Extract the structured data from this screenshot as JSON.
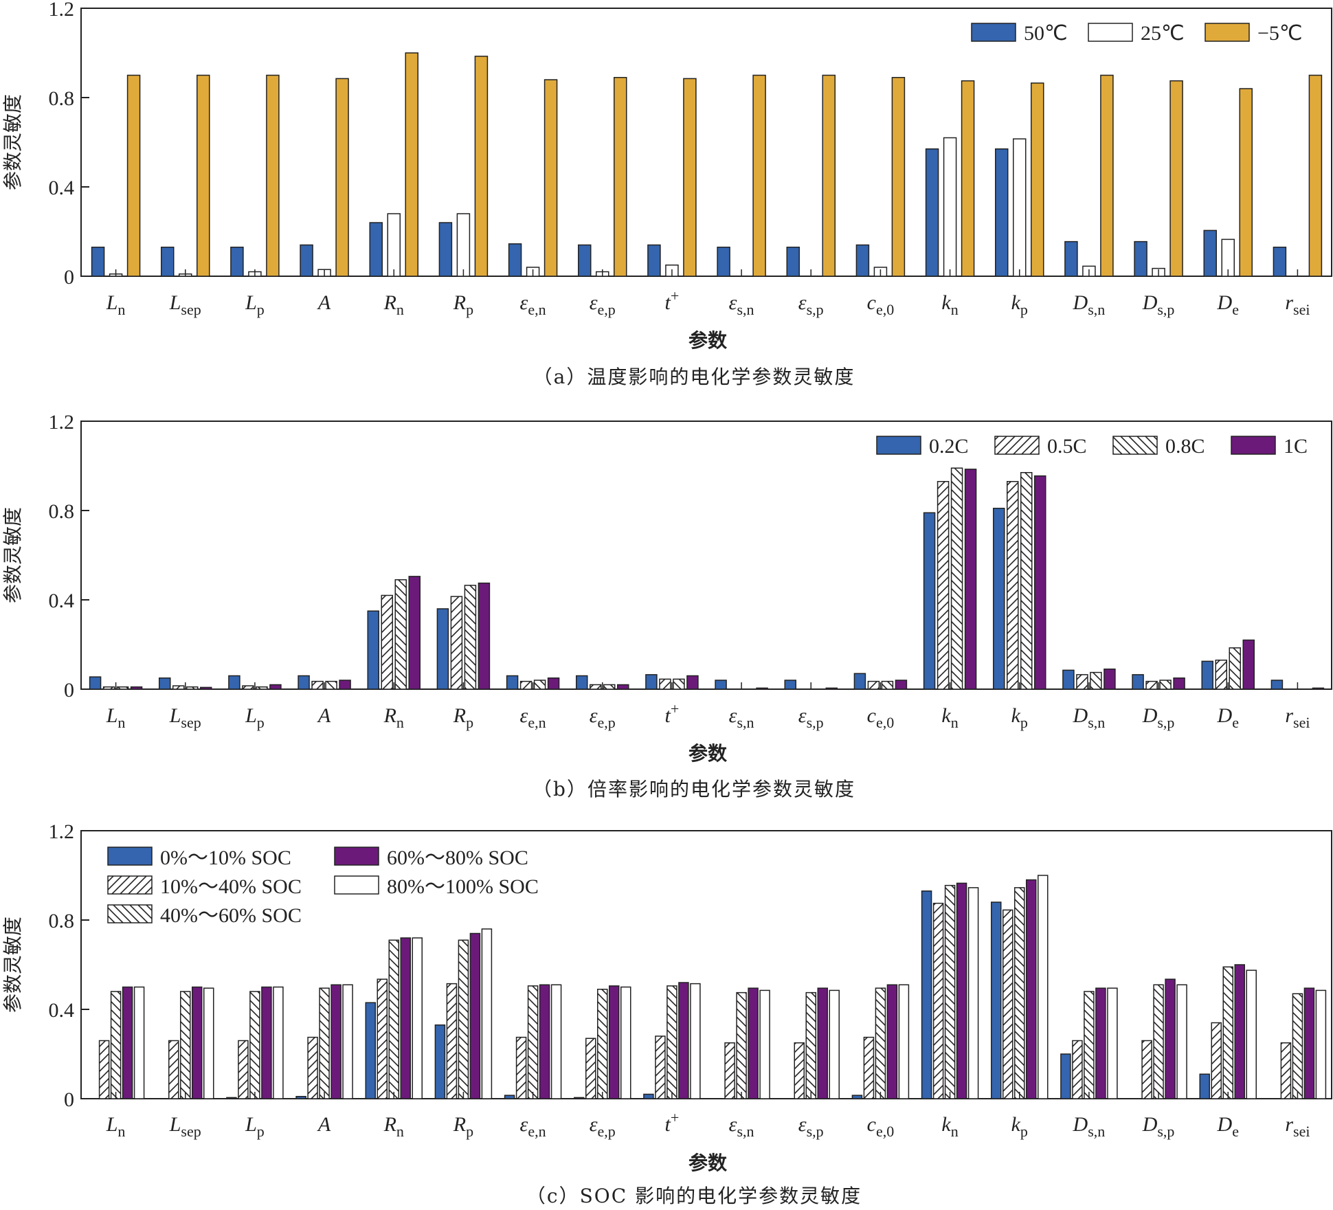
{
  "chart_data": [
    {
      "id": "a",
      "type": "bar",
      "caption": "（a）温度影响的电化学参数灵敏度",
      "xlabel": "参数",
      "ylabel": "参数灵敏度",
      "ylim": [
        0,
        1.2
      ],
      "yticks": [
        "0",
        "0.4",
        "0.8",
        "1.2"
      ],
      "ytick_values": [
        0,
        0.4,
        0.8,
        1.2
      ],
      "legend_position": "top-right",
      "categories": [
        {
          "main": "L",
          "sub": "n"
        },
        {
          "main": "L",
          "sub": "sep"
        },
        {
          "main": "L",
          "sub": "p"
        },
        {
          "main": "A",
          "sub": ""
        },
        {
          "main": "R",
          "sub": "n"
        },
        {
          "main": "R",
          "sub": "p"
        },
        {
          "main": "ε",
          "sub": "e,n"
        },
        {
          "main": "ε",
          "sub": "e,p"
        },
        {
          "main": "t",
          "sup": "+"
        },
        {
          "main": "ε",
          "sub": "s,n"
        },
        {
          "main": "ε",
          "sub": "s,p"
        },
        {
          "main": "c",
          "sub": "e,0"
        },
        {
          "main": "k",
          "sub": "n"
        },
        {
          "main": "k",
          "sub": "p"
        },
        {
          "main": "D",
          "sub": "s,n"
        },
        {
          "main": "D",
          "sub": "s,p"
        },
        {
          "main": "D",
          "sub": "e"
        },
        {
          "main": "r",
          "sub": "sei"
        }
      ],
      "series": [
        {
          "name": "50℃",
          "fill": "#3465ae",
          "pattern": "solid",
          "values": [
            0.13,
            0.13,
            0.13,
            0.14,
            0.24,
            0.24,
            0.145,
            0.14,
            0.14,
            0.13,
            0.13,
            0.14,
            0.57,
            0.57,
            0.155,
            0.155,
            0.205,
            0.13
          ]
        },
        {
          "name": "25℃",
          "fill": "#ffffff",
          "pattern": "solid",
          "values": [
            0.01,
            0.01,
            0.02,
            0.03,
            0.28,
            0.28,
            0.04,
            0.02,
            0.05,
            0.0,
            0.0,
            0.04,
            0.62,
            0.615,
            0.045,
            0.035,
            0.165,
            0.0
          ]
        },
        {
          "name": "−5℃",
          "fill": "#e0aa3a",
          "pattern": "solid",
          "values": [
            0.9,
            0.9,
            0.9,
            0.885,
            1.0,
            0.985,
            0.88,
            0.89,
            0.885,
            0.9,
            0.9,
            0.89,
            0.875,
            0.865,
            0.9,
            0.875,
            0.84,
            0.9
          ]
        }
      ]
    },
    {
      "id": "b",
      "type": "bar",
      "caption": "（b）倍率影响的电化学参数灵敏度",
      "xlabel": "参数",
      "ylabel": "参数灵敏度",
      "ylim": [
        0,
        1.2
      ],
      "yticks": [
        "0",
        "0.4",
        "0.8",
        "1.2"
      ],
      "ytick_values": [
        0,
        0.4,
        0.8,
        1.2
      ],
      "legend_position": "top-right",
      "categories": "same-as-a",
      "series": [
        {
          "name": "0.2C",
          "fill": "#3465ae",
          "pattern": "solid",
          "values": [
            0.055,
            0.05,
            0.06,
            0.06,
            0.35,
            0.36,
            0.06,
            0.06,
            0.065,
            0.04,
            0.04,
            0.07,
            0.79,
            0.81,
            0.085,
            0.065,
            0.125,
            0.04
          ]
        },
        {
          "name": "0.5C",
          "fill": "#ffffff",
          "pattern": "hatch-forward",
          "values": [
            0.01,
            0.015,
            0.015,
            0.035,
            0.42,
            0.415,
            0.035,
            0.02,
            0.045,
            0.0,
            0.0,
            0.035,
            0.93,
            0.93,
            0.065,
            0.035,
            0.13,
            0.0
          ]
        },
        {
          "name": "0.8C",
          "fill": "#ffffff",
          "pattern": "hatch-back",
          "values": [
            0.01,
            0.01,
            0.01,
            0.035,
            0.49,
            0.465,
            0.04,
            0.02,
            0.045,
            0.0,
            0.0,
            0.035,
            0.99,
            0.97,
            0.075,
            0.04,
            0.185,
            0.0
          ]
        },
        {
          "name": "1C",
          "fill": "#6b1a7a",
          "pattern": "solid",
          "values": [
            0.01,
            0.008,
            0.02,
            0.04,
            0.505,
            0.475,
            0.05,
            0.02,
            0.06,
            0.005,
            0.005,
            0.04,
            0.985,
            0.955,
            0.09,
            0.05,
            0.22,
            0.005
          ]
        }
      ]
    },
    {
      "id": "c",
      "type": "bar",
      "caption": "（c）SOC 影响的电化学参数灵敏度",
      "xlabel": "参数",
      "ylabel": "参数灵敏度",
      "ylim": [
        0,
        1.2
      ],
      "yticks": [
        "0",
        "0.4",
        "0.8",
        "1.2"
      ],
      "ytick_values": [
        0,
        0.4,
        0.8,
        1.2
      ],
      "legend_position": "top-left",
      "categories": "same-as-a",
      "series": [
        {
          "name": "0%～10% SOC",
          "fill": "#3465ae",
          "pattern": "solid",
          "values": [
            0.0,
            0.0,
            0.005,
            0.01,
            0.43,
            0.33,
            0.015,
            0.005,
            0.02,
            0.0,
            0.0,
            0.015,
            0.93,
            0.88,
            0.2,
            0.0,
            0.11,
            0.0
          ]
        },
        {
          "name": "10%～40% SOC",
          "fill": "#ffffff",
          "pattern": "hatch-forward",
          "values": [
            0.26,
            0.26,
            0.26,
            0.275,
            0.535,
            0.515,
            0.275,
            0.27,
            0.28,
            0.25,
            0.25,
            0.275,
            0.875,
            0.845,
            0.26,
            0.26,
            0.34,
            0.25
          ]
        },
        {
          "name": "40%～60% SOC",
          "fill": "#ffffff",
          "pattern": "hatch-back",
          "values": [
            0.48,
            0.48,
            0.48,
            0.495,
            0.71,
            0.71,
            0.505,
            0.49,
            0.505,
            0.475,
            0.475,
            0.495,
            0.955,
            0.945,
            0.48,
            0.51,
            0.59,
            0.47
          ]
        },
        {
          "name": "60%～80% SOC",
          "fill": "#6b1a7a",
          "pattern": "solid",
          "values": [
            0.5,
            0.5,
            0.5,
            0.51,
            0.72,
            0.74,
            0.51,
            0.505,
            0.52,
            0.495,
            0.495,
            0.51,
            0.965,
            0.98,
            0.495,
            0.535,
            0.6,
            0.495
          ]
        },
        {
          "name": "80%～100% SOC",
          "fill": "#ffffff",
          "pattern": "solid",
          "values": [
            0.5,
            0.495,
            0.5,
            0.51,
            0.72,
            0.76,
            0.51,
            0.5,
            0.515,
            0.485,
            0.485,
            0.51,
            0.945,
            1.0,
            0.495,
            0.51,
            0.575,
            0.485
          ]
        }
      ]
    }
  ]
}
